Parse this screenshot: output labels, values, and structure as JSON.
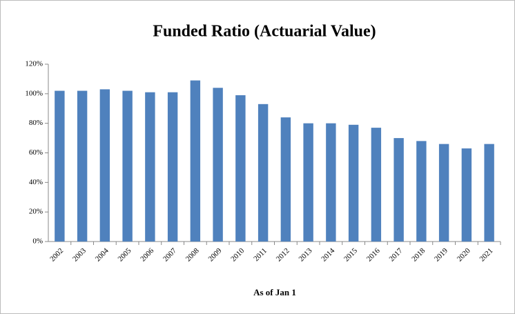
{
  "chart_data": {
    "type": "bar",
    "title": "Funded Ratio (Actuarial Value)",
    "x_label": "As of Jan 1",
    "categories": [
      "2002",
      "2003",
      "2004",
      "2005",
      "2006",
      "2007",
      "2008",
      "2009",
      "2010",
      "2011",
      "2012",
      "2013",
      "2014",
      "2015",
      "2016",
      "2017",
      "2018",
      "2019",
      "2020",
      "2021"
    ],
    "values": [
      102,
      102,
      103,
      102,
      101,
      101,
      109,
      104,
      99,
      93,
      84,
      80,
      80,
      79,
      77,
      70,
      68,
      66,
      63,
      66
    ],
    "color": "#4f81bd",
    "ylim": [
      0,
      120
    ],
    "yticks": [
      {
        "value": 0,
        "label": "0%"
      },
      {
        "value": 20,
        "label": "20%"
      },
      {
        "value": 40,
        "label": "40%"
      },
      {
        "value": 60,
        "label": "60%"
      },
      {
        "value": 80,
        "label": "80%"
      },
      {
        "value": 100,
        "label": "100%"
      },
      {
        "value": 120,
        "label": "120%"
      }
    ],
    "grid": false
  }
}
